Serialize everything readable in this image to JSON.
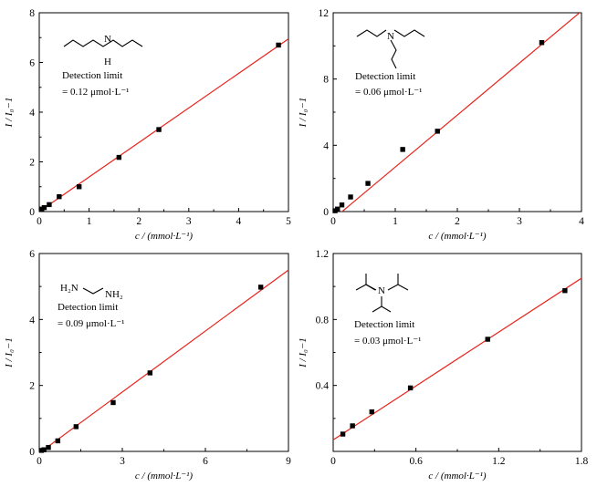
{
  "chart_data": [
    {
      "type": "scatter",
      "xlabel": "c / (mmol·L⁻¹)",
      "ylabel": "I / I₀−1",
      "xlim": [
        0,
        5
      ],
      "ylim": [
        0,
        8
      ],
      "xticks": [
        "0",
        "1",
        "2",
        "3",
        "4",
        "5"
      ],
      "yticks": [
        "0",
        "2",
        "4",
        "6",
        "8"
      ],
      "x": [
        0.05,
        0.1,
        0.2,
        0.4,
        0.8,
        1.6,
        2.4,
        4.8
      ],
      "y": [
        0.1,
        0.16,
        0.28,
        0.6,
        1.0,
        2.18,
        3.3,
        6.7
      ],
      "fit_line": {
        "x": [
          0,
          5
        ],
        "y": [
          0.0,
          6.95
        ]
      },
      "annotations": [
        "N",
        "H",
        "Detection limit",
        "= 0.12 μmol·L⁻¹"
      ],
      "series_colors": {
        "points": "#000000",
        "fit": "#e8241c"
      }
    },
    {
      "type": "scatter",
      "xlabel": "c / (mmol·L⁻¹)",
      "ylabel": "I / I₀−1",
      "xlim": [
        0,
        4
      ],
      "ylim": [
        0,
        12
      ],
      "xticks": [
        "0",
        "1",
        "2",
        "3",
        "4"
      ],
      "yticks": [
        "0",
        "4",
        "8",
        "12"
      ],
      "x": [
        0.03,
        0.07,
        0.14,
        0.28,
        0.56,
        1.12,
        1.68,
        3.36
      ],
      "y": [
        0.05,
        0.15,
        0.4,
        0.88,
        1.7,
        3.75,
        4.85,
        10.2
      ],
      "fit_line": {
        "x": [
          0,
          4
        ],
        "y": [
          -0.45,
          12.1
        ]
      },
      "annotations": [
        "N",
        "Detection limit",
        "= 0.06 μmol·L⁻¹"
      ],
      "series_colors": {
        "points": "#000000",
        "fit": "#e8241c"
      }
    },
    {
      "type": "scatter",
      "xlabel": "c / (mmol·L⁻¹)",
      "ylabel": "I / I₀−1",
      "xlim": [
        0,
        9
      ],
      "ylim": [
        0,
        6
      ],
      "xticks": [
        "0",
        "3",
        "6",
        "9"
      ],
      "yticks": [
        "0",
        "2",
        "4",
        "6"
      ],
      "x": [
        0.08,
        0.17,
        0.33,
        0.67,
        1.33,
        2.67,
        4.0,
        8.0
      ],
      "y": [
        0.03,
        0.05,
        0.12,
        0.32,
        0.75,
        1.48,
        2.38,
        4.98
      ],
      "fit_line": {
        "x": [
          0,
          9
        ],
        "y": [
          -0.05,
          5.5
        ]
      },
      "annotations": [
        "H₂N",
        "NH₂",
        "Detection limit",
        "= 0.09 μmol·L⁻¹"
      ],
      "series_colors": {
        "points": "#000000",
        "fit": "#e8241c"
      }
    },
    {
      "type": "scatter",
      "xlabel": "c / (mmol·L⁻¹)",
      "ylabel": "I / I₀−1",
      "xlim": [
        0,
        1.8
      ],
      "ylim": [
        0,
        1.2
      ],
      "xticks": [
        "0",
        "0.6",
        "1.2",
        "1.8"
      ],
      "yticks": [
        "0.4",
        "0.8",
        "1.2"
      ],
      "x": [
        0.07,
        0.14,
        0.28,
        0.56,
        1.12,
        1.68
      ],
      "y": [
        0.105,
        0.155,
        0.24,
        0.385,
        0.68,
        0.975
      ],
      "fit_line": {
        "x": [
          0,
          1.8
        ],
        "y": [
          0.07,
          1.05
        ]
      },
      "annotations": [
        "N",
        "Detection limit",
        "= 0.03 μmol·L⁻¹"
      ],
      "series_colors": {
        "points": "#000000",
        "fit": "#e8241c"
      }
    }
  ]
}
